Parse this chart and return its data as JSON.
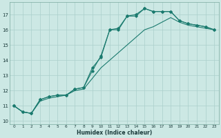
{
  "xlabel": "Humidex (Indice chaleur)",
  "bg_color": "#cce8e4",
  "grid_color": "#aacfcb",
  "line_color": "#1a7a6e",
  "series1_x": [
    0,
    1,
    2,
    3,
    4,
    5,
    6,
    7,
    8,
    9,
    10,
    11,
    12,
    13,
    14,
    15,
    16,
    17,
    18,
    19,
    20,
    21,
    22,
    23
  ],
  "series1_y": [
    11.0,
    10.6,
    10.5,
    11.4,
    11.6,
    11.7,
    11.7,
    12.1,
    12.2,
    13.5,
    14.2,
    16.0,
    16.0,
    16.9,
    16.9,
    17.4,
    17.2,
    17.2,
    17.2,
    16.6,
    16.4,
    16.3,
    16.2,
    16.0
  ],
  "series2_x": [
    0,
    1,
    2,
    3,
    4,
    5,
    6,
    7,
    8,
    9,
    10,
    11,
    12,
    13,
    14,
    15,
    16,
    17,
    18,
    19,
    20,
    21,
    22,
    23
  ],
  "series2_y": [
    11.0,
    10.6,
    10.5,
    11.4,
    11.6,
    11.7,
    11.7,
    12.1,
    12.2,
    13.3,
    14.3,
    16.0,
    16.1,
    16.9,
    17.0,
    17.4,
    17.2,
    17.2,
    17.2,
    16.6,
    16.4,
    16.3,
    16.2,
    16.0
  ],
  "series3_x": [
    0,
    1,
    2,
    3,
    4,
    5,
    6,
    7,
    8,
    9,
    10,
    11,
    12,
    13,
    14,
    15,
    16,
    17,
    18,
    19,
    20,
    21,
    22,
    23
  ],
  "series3_y": [
    11.0,
    10.6,
    10.5,
    11.3,
    11.5,
    11.6,
    11.7,
    12.0,
    12.1,
    12.8,
    13.5,
    14.0,
    14.5,
    15.0,
    15.5,
    16.0,
    16.2,
    16.5,
    16.8,
    16.5,
    16.3,
    16.2,
    16.1,
    16.0
  ],
  "xlim": [
    -0.5,
    23.5
  ],
  "ylim": [
    9.8,
    17.8
  ],
  "yticks": [
    10,
    11,
    12,
    13,
    14,
    15,
    16,
    17
  ],
  "xticks": [
    0,
    1,
    2,
    3,
    4,
    5,
    6,
    7,
    8,
    9,
    10,
    11,
    12,
    13,
    14,
    15,
    16,
    17,
    18,
    19,
    20,
    21,
    22,
    23
  ],
  "marker_x1": [
    0,
    1,
    2,
    3,
    4,
    5,
    6,
    7,
    8,
    9,
    10,
    11,
    12,
    13,
    14,
    15,
    16,
    17,
    18,
    19,
    20,
    21,
    22,
    23
  ],
  "marker_y1": [
    11.0,
    10.6,
    10.5,
    11.4,
    11.6,
    11.7,
    11.7,
    12.1,
    12.2,
    13.5,
    14.2,
    16.0,
    16.0,
    16.9,
    16.9,
    17.4,
    17.2,
    17.2,
    17.2,
    16.6,
    16.4,
    16.3,
    16.2,
    16.0
  ]
}
